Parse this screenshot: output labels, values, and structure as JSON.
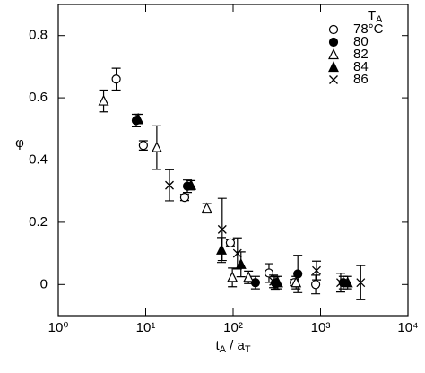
{
  "chart_data": {
    "type": "scatter",
    "x_label": [
      "t",
      "A",
      " / a",
      "T"
    ],
    "y_label": "φ",
    "legend_title": [
      "T",
      "A"
    ],
    "xlim": [
      1,
      10000
    ],
    "ylim": [
      -0.1,
      0.9
    ],
    "xscale": "log",
    "xticks": [
      {
        "value": 1,
        "label": "10⁰"
      },
      {
        "value": 10,
        "label": "10¹"
      },
      {
        "value": 100,
        "label": "10²"
      },
      {
        "value": 1000,
        "label": "10³"
      },
      {
        "value": 10000,
        "label": "10⁴"
      }
    ],
    "yticks": [
      0,
      0.2,
      0.4,
      0.6,
      0.8
    ],
    "series": [
      {
        "name": "78°C",
        "marker": "circle-open",
        "color": "#000000",
        "x": [
          4.6,
          9.4,
          27.9,
          93,
          257,
          500,
          880
        ],
        "values": [
          0.66,
          0.447,
          0.28,
          0.134,
          0.037,
          0.006,
          0
        ],
        "errors": [
          0.035,
          0.015,
          0.01,
          0.01,
          0.03,
          0.01,
          0.03
        ]
      },
      {
        "name": "80",
        "marker": "circle-filled",
        "color": "#000000",
        "x": [
          7.8,
          30,
          180,
          303,
          550,
          1820
        ],
        "values": [
          0.527,
          0.316,
          0.006,
          0.005,
          0.034,
          0.006
        ],
        "errors": [
          0.02,
          0.02,
          0.02,
          0.02,
          0.06,
          0.02
        ]
      },
      {
        "name": "82",
        "marker": "triangle-open",
        "color": "#000000",
        "x": [
          3.3,
          13.4,
          50,
          98,
          150,
          525
        ],
        "values": [
          0.59,
          0.44,
          0.245,
          0.023,
          0.023,
          0.006
        ],
        "errors": [
          0.035,
          0.07,
          0.015,
          0.03,
          0.02,
          0.02
        ]
      },
      {
        "name": "84",
        "marker": "triangle-filled",
        "color": "#000000",
        "x": [
          8.2,
          33,
          73.6,
          123,
          325,
          2040
        ],
        "values": [
          0.532,
          0.319,
          0.111,
          0.065,
          0.006,
          0.006
        ],
        "errors": [
          0.015,
          0.015,
          0.04,
          0.04,
          0.02,
          0.02
        ]
      },
      {
        "name": "86",
        "marker": "cross",
        "color": "#000000",
        "x": [
          18.7,
          75,
          112,
          290,
          900,
          1700,
          2880
        ],
        "values": [
          0.319,
          0.177,
          0.1,
          0.01,
          0.045,
          0.006,
          0.006
        ],
        "errors": [
          0.05,
          0.1,
          0.05,
          0.02,
          0.03,
          0.03,
          0.055
        ]
      }
    ]
  }
}
